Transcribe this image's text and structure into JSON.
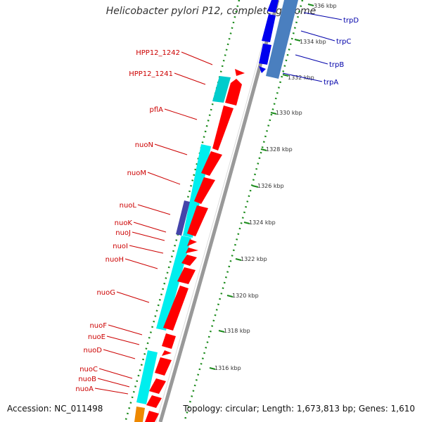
{
  "title": "Helicobacter pylori P12, complete genome",
  "footer": {
    "accession": "Accession: NC_011498",
    "topology": "Topology: circular; Length: 1,673,813 bp; Genes: 1,610"
  },
  "colors": {
    "forward_gene": "#ff0000",
    "reverse_gene": "#00eeee",
    "trp_gene": "#0000ee",
    "trp_cds": "#4a7fbf",
    "backbone": "#888888",
    "tick_dots": "#1a8a1a",
    "red_label": "#cc0000",
    "blue_label": "#0000aa"
  },
  "ticks": [
    "1316 kbp",
    "1318 kbp",
    "1320 kbp",
    "1322 kbp",
    "1324 kbp",
    "1326 kbp",
    "1328 kbp",
    "1330 kbp",
    "1332 kbp",
    "1334 kbp",
    "336 kbp"
  ],
  "genes_left": [
    "HPP12_1242",
    "HPP12_1241",
    "pflA",
    "nuoN",
    "nuoM",
    "nuoL",
    "nuoK",
    "nuoJ",
    "nuoI",
    "nuoH",
    "nuoG",
    "nuoF",
    "nuoE",
    "nuoD",
    "nuoC",
    "nuoB",
    "nuoA"
  ],
  "genes_right": [
    "trpD",
    "trpC",
    "trpB",
    "trpA"
  ]
}
